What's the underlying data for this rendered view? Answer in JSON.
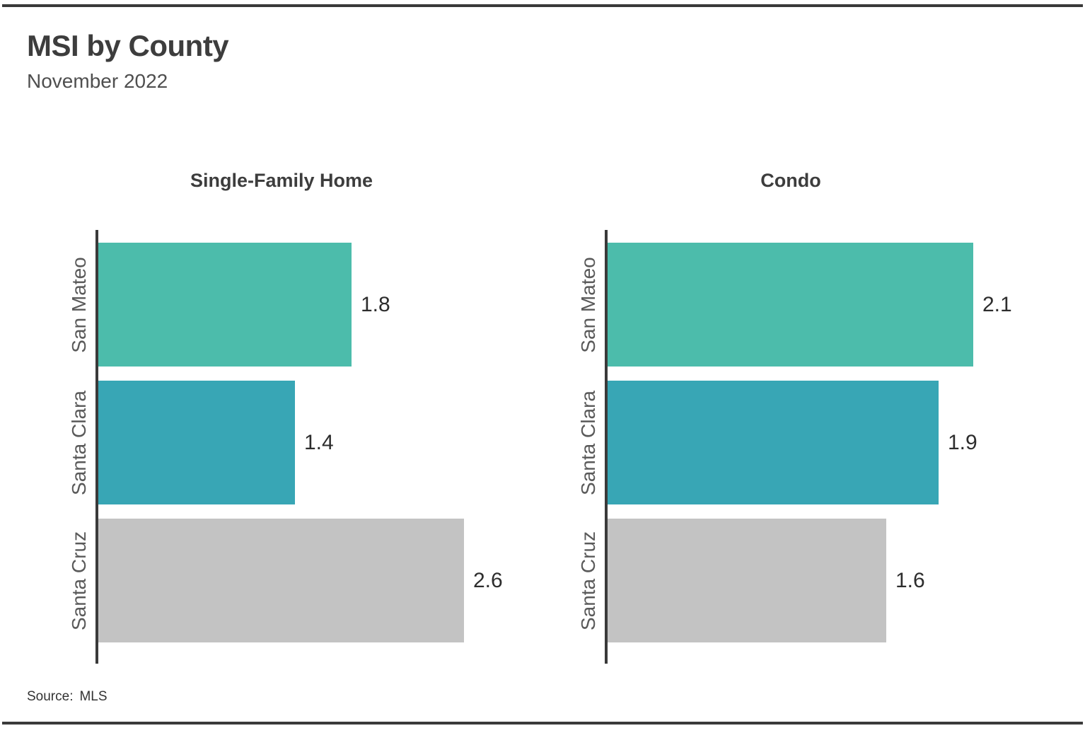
{
  "page": {
    "title": "MSI by County",
    "subtitle": "November 2022",
    "source_label": "Source:",
    "source_value": "MLS"
  },
  "colors": {
    "bar_san_mateo": "#4CBCAB",
    "bar_santa_clara": "#38A6B5",
    "bar_santa_cruz": "#C3C3C3",
    "axis_line": "#3A3A3A",
    "rule_line": "#3A3A3A",
    "title_text": "#3D3D3D",
    "subtitle_text": "#4F4F4F",
    "category_text": "#5A5A5A",
    "value_text": "#2D2D2D"
  },
  "chart_data": {
    "type": "bar",
    "orientation": "horizontal",
    "title": "MSI by County",
    "subtitle": "November 2022",
    "source": "Source: MLS",
    "categories": [
      "San Mateo",
      "Santa Clara",
      "Santa Cruz"
    ],
    "series": [
      {
        "name": "Single-Family Home",
        "values": [
          1.8,
          1.4,
          2.6
        ]
      },
      {
        "name": "Condo",
        "values": [
          2.1,
          1.9,
          1.6
        ]
      }
    ],
    "bar_colors": [
      "#4CBCAB",
      "#38A6B5",
      "#C3C3C3"
    ],
    "legend": "none",
    "grid": false,
    "value_labels_shown": true,
    "layout_hint": "two side-by-side facets; categories on left y-axis rotated 90 degrees; each facet x-scale normalized to its own max value; values labeled at bar ends"
  }
}
